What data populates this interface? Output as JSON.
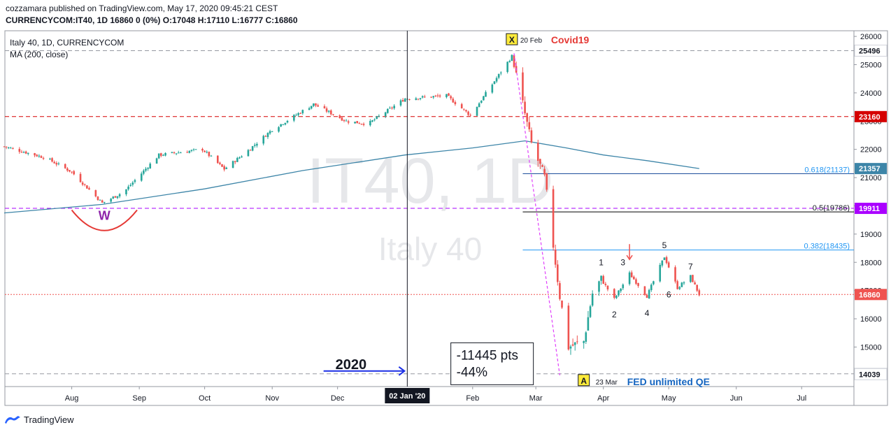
{
  "header": {
    "publisher_line": "cozzamara published on TradingView.com, May 17, 2020 09:45:21 CEST",
    "symbol_line": "CURRENCYCOM:IT40, 1D  16860 0 (0%) O:17048 H:17110 L:16777 C:16860"
  },
  "legend": {
    "symbol": "Italy 40, 1D, CURRENCYCOM",
    "indicator": "MA (200, close)"
  },
  "watermark": {
    "ticker": "IT40, 1D",
    "name": "Italy 40"
  },
  "footer": {
    "brand": "TradingView"
  },
  "colors": {
    "up": "#26a69a",
    "down": "#ef5350",
    "ma": "#3d85a8",
    "red_level": "#d50000",
    "purple_level": "#aa00ff",
    "fib_blue": "#1e4f9c",
    "fib_black": "#000000",
    "fib_light": "#2196f3",
    "arrow_blue": "#1b2fe6",
    "magenta": "#e040fb",
    "title_red": "#e53935",
    "qe_blue": "#1565c0"
  },
  "chart_data": {
    "type": "candlestick",
    "y_axis": {
      "range": [
        13600,
        26200
      ],
      "ticks": [
        14000,
        15000,
        16000,
        17000,
        18000,
        19000,
        20000,
        21000,
        22000,
        23000,
        24000,
        25000,
        26000
      ],
      "tick_labels": [
        "14000",
        "15000",
        "16000",
        "17000",
        "18000",
        "19000",
        "20000",
        "21000",
        "22000",
        "23000",
        "24000",
        "25000",
        "26000"
      ]
    },
    "x_axis": {
      "range": [
        "2020-07-11",
        "2020-07-25"
      ],
      "tick_labels": [
        {
          "label": "Aug",
          "date": "2019-08-01"
        },
        {
          "label": "Sep",
          "date": "2019-09-01"
        },
        {
          "label": "Oct",
          "date": "2019-10-01"
        },
        {
          "label": "Nov",
          "date": "2019-11-01"
        },
        {
          "label": "Dec",
          "date": "2019-12-01"
        },
        {
          "label": "Feb",
          "date": "2020-02-01"
        },
        {
          "label": "Mar",
          "date": "2020-03-01"
        },
        {
          "label": "Apr",
          "date": "2020-04-01"
        },
        {
          "label": "May",
          "date": "2020-05-01"
        },
        {
          "label": "Jun",
          "date": "2020-06-01"
        },
        {
          "label": "Jul",
          "date": "2020-07-01"
        }
      ],
      "crosshair_label": "02 Jan '20",
      "crosshair_date": "2020-01-02"
    },
    "price_path": [
      {
        "date": "2019-07-01",
        "price": 22100
      },
      {
        "date": "2019-07-20",
        "price": 21700
      },
      {
        "date": "2019-08-01",
        "price": 21200
      },
      {
        "date": "2019-08-15",
        "price": 20100
      },
      {
        "date": "2019-08-25",
        "price": 20500
      },
      {
        "date": "2019-09-10",
        "price": 21800
      },
      {
        "date": "2019-09-30",
        "price": 22000
      },
      {
        "date": "2019-10-10",
        "price": 21300
      },
      {
        "date": "2019-10-20",
        "price": 21900
      },
      {
        "date": "2019-11-01",
        "price": 22700
      },
      {
        "date": "2019-11-20",
        "price": 23600
      },
      {
        "date": "2019-12-05",
        "price": 23000
      },
      {
        "date": "2019-12-15",
        "price": 22900
      },
      {
        "date": "2020-01-01",
        "price": 23800
      },
      {
        "date": "2020-01-20",
        "price": 23900
      },
      {
        "date": "2020-01-31",
        "price": 23200
      },
      {
        "date": "2020-02-19",
        "price": 25300
      },
      {
        "date": "2020-02-24",
        "price": 23600
      },
      {
        "date": "2020-02-28",
        "price": 22200
      },
      {
        "date": "2020-03-05",
        "price": 21000
      },
      {
        "date": "2020-03-09",
        "price": 18600
      },
      {
        "date": "2020-03-12",
        "price": 16800
      },
      {
        "date": "2020-03-16",
        "price": 15000
      },
      {
        "date": "2020-03-23",
        "price": 15200
      },
      {
        "date": "2020-03-27",
        "price": 16900
      },
      {
        "date": "2020-03-31",
        "price": 17400
      },
      {
        "date": "2020-04-06",
        "price": 16700
      },
      {
        "date": "2020-04-13",
        "price": 17600
      },
      {
        "date": "2020-04-21",
        "price": 16800
      },
      {
        "date": "2020-04-29",
        "price": 18200
      },
      {
        "date": "2020-05-05",
        "price": 17100
      },
      {
        "date": "2020-05-11",
        "price": 17500
      },
      {
        "date": "2020-05-15",
        "price": 16860
      }
    ],
    "ma_200": [
      {
        "date": "2019-07-01",
        "value": 19750
      },
      {
        "date": "2019-08-15",
        "value": 20050
      },
      {
        "date": "2019-10-01",
        "value": 20600
      },
      {
        "date": "2019-11-15",
        "value": 21250
      },
      {
        "date": "2020-01-01",
        "value": 21800
      },
      {
        "date": "2020-02-01",
        "value": 22050
      },
      {
        "date": "2020-02-25",
        "value": 22300
      },
      {
        "date": "2020-03-15",
        "value": 22050
      },
      {
        "date": "2020-04-01",
        "value": 21800
      },
      {
        "date": "2020-04-21",
        "value": 21600
      },
      {
        "date": "2020-05-15",
        "value": 21320
      }
    ],
    "horizontal_levels": [
      {
        "price": 25496,
        "label": "25496",
        "style": "dashed-gray"
      },
      {
        "price": 23160,
        "label": "23160",
        "style": "dashed-red"
      },
      {
        "price": 19911,
        "label": "19911",
        "style": "dashed-purple"
      },
      {
        "price": 16860,
        "label": "16860",
        "style": "dotted-red"
      },
      {
        "price": 14051,
        "label": "14051",
        "style": "dashed-gray"
      },
      {
        "price": 14039,
        "label": "14039",
        "style": "none"
      }
    ],
    "ma_axis_label": "21357",
    "fib_levels": [
      {
        "ratio": "0.618",
        "price": 21137,
        "label": "0.618(21137)"
      },
      {
        "ratio": "0.5",
        "price": 19786,
        "label": "0.5(19786)"
      },
      {
        "ratio": "0.382",
        "price": 18435,
        "label": "0.382(18435)"
      }
    ],
    "annotations": {
      "x_marker": "X",
      "x_date": "20 Feb",
      "x_title": "Covid19",
      "a_marker": "A",
      "a_date": "23 Mar",
      "a_title": "FED unlimited QE",
      "w_label": "W",
      "year_label": "2020",
      "drop_pts": "-11445 pts",
      "drop_pct": "-44%",
      "wave_labels": [
        {
          "label": "1",
          "date": "2020-03-31",
          "price": 18000,
          "pos": "above"
        },
        {
          "label": "2",
          "date": "2020-04-06",
          "price": 16150,
          "pos": "below"
        },
        {
          "label": "3",
          "date": "2020-04-10",
          "price": 18000,
          "pos": "above"
        },
        {
          "label": "4",
          "date": "2020-04-21",
          "price": 16200,
          "pos": "below"
        },
        {
          "label": "5",
          "date": "2020-04-29",
          "price": 18600,
          "pos": "above"
        },
        {
          "label": "6",
          "date": "2020-05-01",
          "price": 16850,
          "pos": "below"
        },
        {
          "label": "7",
          "date": "2020-05-11",
          "price": 17850,
          "pos": "above"
        }
      ]
    }
  }
}
